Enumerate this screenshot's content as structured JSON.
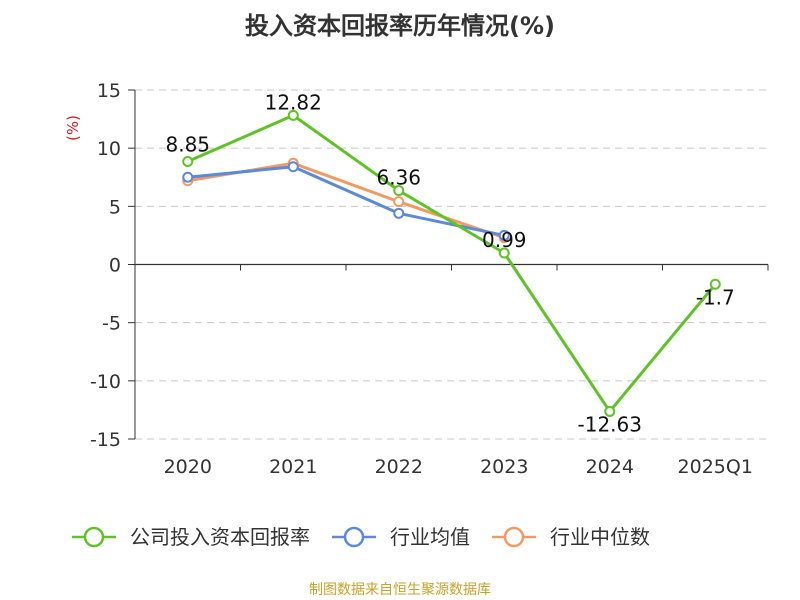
{
  "title": "投入资本回报率历年情况(%)",
  "footer": "制图数据来自恒生聚源数据库",
  "chart_data": {
    "type": "line",
    "title": "投入资本回报率历年情况(%)",
    "ylabel": "(%)",
    "xlabel": "",
    "categories": [
      "2020",
      "2021",
      "2022",
      "2023",
      "2024",
      "2025Q1"
    ],
    "ylim": [
      -15,
      15
    ],
    "yticks": [
      15,
      10,
      5,
      0,
      -5,
      -10,
      -15
    ],
    "grid": true,
    "legend_position": "bottom",
    "series": [
      {
        "name": "公司投入资本回报率",
        "color": "#5fc327",
        "values": [
          8.85,
          12.82,
          6.36,
          0.99,
          -12.63,
          -1.7
        ],
        "labels": [
          "8.85",
          "12.82",
          "6.36",
          "0.99",
          "-12.63",
          "-1.7"
        ]
      },
      {
        "name": "行业均值",
        "color": "#5b8ad8",
        "values": [
          7.5,
          8.4,
          4.4,
          2.5,
          null,
          null
        ]
      },
      {
        "name": "行业中位数",
        "color": "#f39a64",
        "values": [
          7.2,
          8.7,
          5.4,
          2.3,
          null,
          null
        ]
      }
    ]
  }
}
